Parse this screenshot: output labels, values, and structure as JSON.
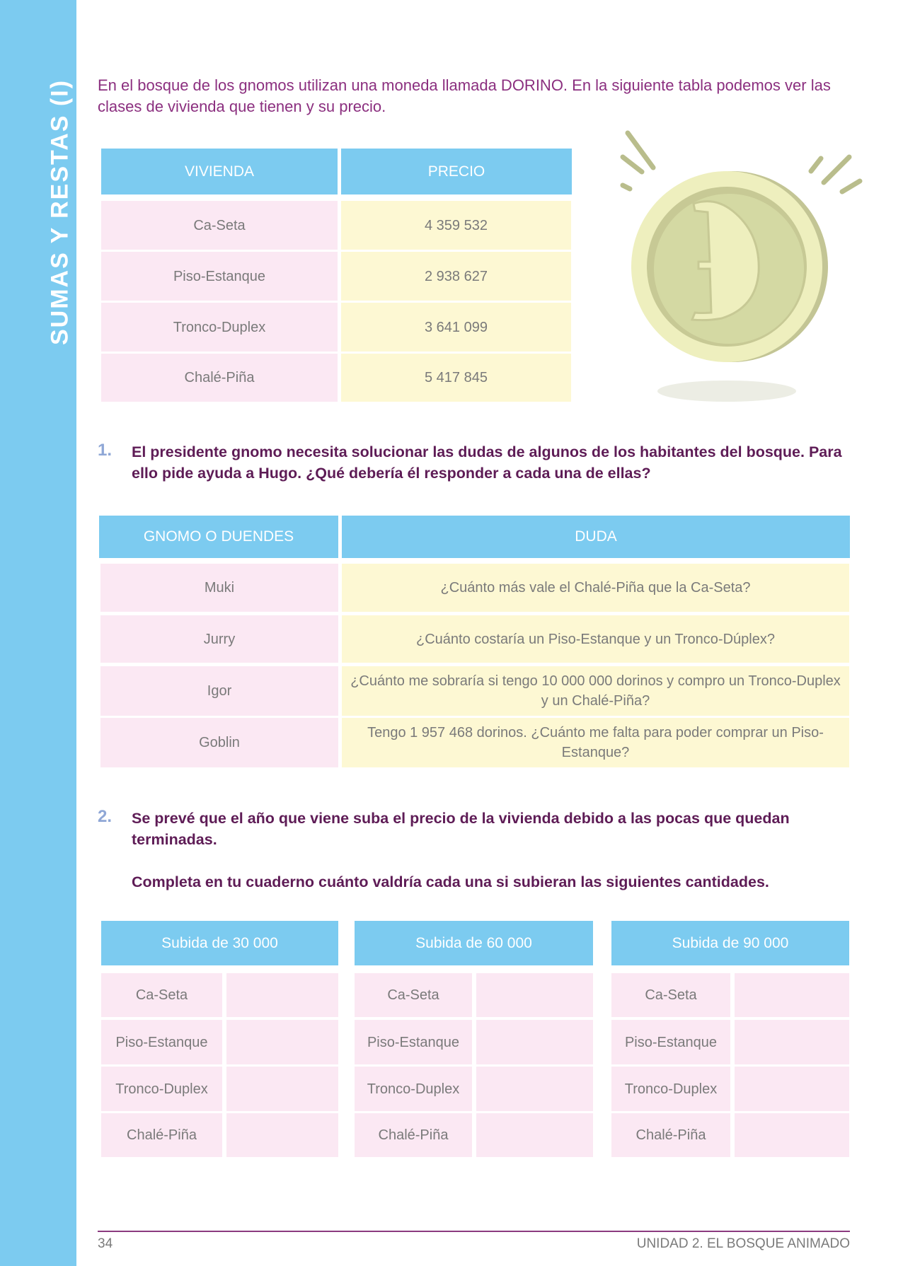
{
  "sidebar": {
    "title": "SUMAS Y RESTAS (I)",
    "color": "#7ccbf0"
  },
  "intro": "En el bosque de los gnomos utilizan una moneda llamada DORINO. En la siguiente tabla podemos ver las clases de vivienda que tienen y su precio.",
  "prices_table": {
    "headers": [
      "VIVIENDA",
      "PRECIO"
    ],
    "rows": [
      [
        "Ca-Seta",
        "4 359 532"
      ],
      [
        "Piso-Estanque",
        "2 938 627"
      ],
      [
        "Tronco-Duplex",
        "3 641 099"
      ],
      [
        "Chalé-Piña",
        "5 417 845"
      ]
    ]
  },
  "coin": {
    "icon": "dorino-coin-icon",
    "letter": "D"
  },
  "q1": {
    "number": "1.",
    "text": "El presidente gnomo necesita solucionar las dudas de algunos de los habitantes del bosque. Para ello pide ayuda a Hugo. ¿Qué debería él responder a cada una de ellas?"
  },
  "doubts_table": {
    "headers": [
      "GNOMO O DUENDES",
      "DUDA"
    ],
    "rows": [
      [
        "Muki",
        "¿Cuánto más vale el Chalé-Piña que la Ca-Seta?"
      ],
      [
        "Jurry",
        "¿Cuánto costaría un Piso-Estanque y un Tronco-Dúplex?"
      ],
      [
        "Igor",
        "¿Cuánto me sobraría si tengo 10 000 000 dorinos y compro un Tronco-Duplex y un Chalé-Piña?"
      ],
      [
        "Goblin",
        "Tengo 1 957 468 dorinos. ¿Cuánto me falta para poder comprar un Piso-Estanque?"
      ]
    ]
  },
  "q2": {
    "number": "2.",
    "text": "Se prevé que el año que viene suba el precio de la vivienda debido a las pocas que quedan terminadas.",
    "instruction": "Completa en tu cuaderno cuánto valdría cada una si subieran las siguientes cantidades."
  },
  "increase_tables": [
    {
      "header": "Subida de 30 000",
      "rows": [
        "Ca-Seta",
        "Piso-Estanque",
        "Tronco-Duplex",
        "Chalé-Piña"
      ]
    },
    {
      "header": "Subida de 60 000",
      "rows": [
        "Ca-Seta",
        "Piso-Estanque",
        "Tronco-Duplex",
        "Chalé-Piña"
      ]
    },
    {
      "header": "Subida de 90 000",
      "rows": [
        "Ca-Seta",
        "Piso-Estanque",
        "Tronco-Duplex",
        "Chalé-Piña"
      ]
    }
  ],
  "footer": {
    "page": "34",
    "unit": "UNIDAD 2. EL BOSQUE ANIMADO"
  }
}
